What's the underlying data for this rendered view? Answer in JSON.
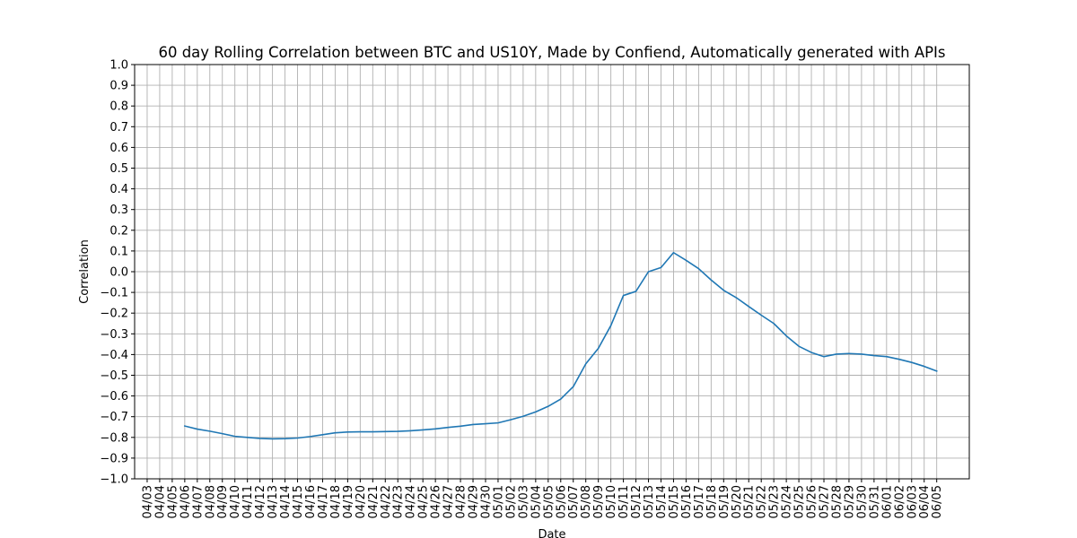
{
  "chart_data": {
    "type": "line",
    "title": "60 day Rolling Correlation between BTC and US10Y, Made by Confiend, Automatically generated with APIs",
    "xlabel": "Date",
    "ylabel": "Correlation",
    "ylim": [
      -1.0,
      1.0
    ],
    "xlim": [
      -1.0,
      65.6
    ],
    "grid": true,
    "colors": {
      "line": "#1f77b4",
      "grid": "#b0b0b0",
      "axes": "#000000",
      "background": "#ffffff"
    },
    "yticks": [
      {
        "value": -1.0,
        "label": "−1.0"
      },
      {
        "value": -0.9,
        "label": "−0.9"
      },
      {
        "value": -0.8,
        "label": "−0.8"
      },
      {
        "value": -0.7,
        "label": "−0.7"
      },
      {
        "value": -0.6,
        "label": "−0.6"
      },
      {
        "value": -0.5,
        "label": "−0.5"
      },
      {
        "value": -0.4,
        "label": "−0.4"
      },
      {
        "value": -0.3,
        "label": "−0.3"
      },
      {
        "value": -0.2,
        "label": "−0.2"
      },
      {
        "value": -0.1,
        "label": "−0.1"
      },
      {
        "value": 0.0,
        "label": "0.0"
      },
      {
        "value": 0.1,
        "label": "0.1"
      },
      {
        "value": 0.2,
        "label": "0.2"
      },
      {
        "value": 0.3,
        "label": "0.3"
      },
      {
        "value": 0.4,
        "label": "0.4"
      },
      {
        "value": 0.5,
        "label": "0.5"
      },
      {
        "value": 0.6,
        "label": "0.6"
      },
      {
        "value": 0.7,
        "label": "0.7"
      },
      {
        "value": 0.8,
        "label": "0.8"
      },
      {
        "value": 0.9,
        "label": "0.9"
      },
      {
        "value": 1.0,
        "label": "1.0"
      }
    ],
    "xticks": [
      "04/03",
      "04/04",
      "04/05",
      "04/06",
      "04/07",
      "04/08",
      "04/09",
      "04/10",
      "04/11",
      "04/12",
      "04/13",
      "04/14",
      "04/15",
      "04/16",
      "04/17",
      "04/18",
      "04/19",
      "04/20",
      "04/21",
      "04/22",
      "04/23",
      "04/24",
      "04/25",
      "04/26",
      "04/27",
      "04/28",
      "04/29",
      "04/30",
      "05/01",
      "05/02",
      "05/03",
      "05/04",
      "05/05",
      "05/06",
      "05/07",
      "05/08",
      "05/09",
      "05/10",
      "05/11",
      "05/12",
      "05/13",
      "05/14",
      "05/15",
      "05/16",
      "05/17",
      "05/18",
      "05/19",
      "05/20",
      "05/21",
      "05/22",
      "05/23",
      "05/24",
      "05/25",
      "05/26",
      "05/27",
      "05/28",
      "05/29",
      "05/30",
      "05/31",
      "06/01",
      "06/02",
      "06/03",
      "06/04",
      "06/05"
    ],
    "series": [
      {
        "name": "Correlation",
        "x": [
          "04/06",
          "04/07",
          "04/08",
          "04/09",
          "04/10",
          "04/11",
          "04/12",
          "04/13",
          "04/14",
          "04/15",
          "04/16",
          "04/17",
          "04/18",
          "04/19",
          "04/20",
          "04/21",
          "04/22",
          "04/23",
          "04/24",
          "04/25",
          "04/26",
          "04/27",
          "04/28",
          "04/29",
          "04/30",
          "05/01",
          "05/02",
          "05/03",
          "05/04",
          "05/05",
          "05/06",
          "05/07",
          "05/08",
          "05/09",
          "05/10",
          "05/11",
          "05/12",
          "05/13",
          "05/14",
          "05/15",
          "05/16",
          "05/17",
          "05/18",
          "05/19",
          "05/20",
          "05/21",
          "05/22",
          "05/23",
          "05/24",
          "05/25",
          "05/26",
          "05/27",
          "05/28",
          "05/29",
          "05/30",
          "05/31",
          "06/01",
          "06/02",
          "06/03",
          "06/04",
          "06/05"
        ],
        "values": [
          -0.745,
          -0.76,
          -0.77,
          -0.782,
          -0.795,
          -0.8,
          -0.805,
          -0.807,
          -0.806,
          -0.803,
          -0.796,
          -0.787,
          -0.778,
          -0.774,
          -0.773,
          -0.773,
          -0.772,
          -0.771,
          -0.768,
          -0.764,
          -0.759,
          -0.752,
          -0.746,
          -0.738,
          -0.734,
          -0.73,
          -0.715,
          -0.698,
          -0.677,
          -0.65,
          -0.615,
          -0.555,
          -0.445,
          -0.37,
          -0.26,
          -0.115,
          -0.095,
          0.0,
          0.02,
          0.092,
          0.055,
          0.015,
          -0.04,
          -0.09,
          -0.125,
          -0.168,
          -0.21,
          -0.25,
          -0.31,
          -0.36,
          -0.39,
          -0.41,
          -0.398,
          -0.395,
          -0.398,
          -0.405,
          -0.41,
          -0.423,
          -0.438,
          -0.457,
          -0.48
        ]
      }
    ]
  }
}
